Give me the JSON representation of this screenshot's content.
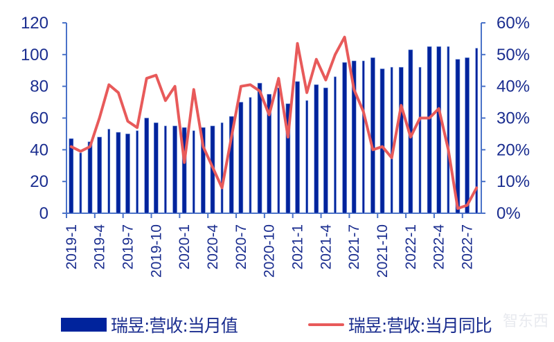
{
  "chart_data": {
    "type": "bar+line",
    "title": "",
    "xlabel": "",
    "ylabel_left": "",
    "ylabel_right": "",
    "ylim_left": [
      0,
      120
    ],
    "ylim_right": [
      0,
      60
    ],
    "yticks_left": [
      "0",
      "20",
      "40",
      "60",
      "80",
      "100",
      "120"
    ],
    "yticks_right": [
      "0%",
      "10%",
      "20%",
      "30%",
      "40%",
      "50%",
      "60%"
    ],
    "grid": false,
    "legend_position": "bottom",
    "categories": [
      "2019-1",
      "2019-2",
      "2019-3",
      "2019-4",
      "2019-5",
      "2019-6",
      "2019-7",
      "2019-8",
      "2019-9",
      "2019-10",
      "2019-11",
      "2019-12",
      "2020-1",
      "2020-2",
      "2020-3",
      "2020-4",
      "2020-5",
      "2020-6",
      "2020-7",
      "2020-8",
      "2020-9",
      "2020-10",
      "2020-11",
      "2020-12",
      "2021-1",
      "2021-2",
      "2021-3",
      "2021-4",
      "2021-5",
      "2021-6",
      "2021-7",
      "2021-8",
      "2021-9",
      "2021-10",
      "2021-11",
      "2021-12",
      "2022-1",
      "2022-2",
      "2022-3",
      "2022-4",
      "2022-5",
      "2022-6",
      "2022-7",
      "2022-8"
    ],
    "xtick_labels": [
      "2019-1",
      "2019-4",
      "2019-7",
      "2019-10",
      "2020-1",
      "2020-4",
      "2020-7",
      "2020-10",
      "2021-1",
      "2021-4",
      "2021-7",
      "2021-10",
      "2022-1",
      "2022-4",
      "2022-7"
    ],
    "series": [
      {
        "name": "瑞昱:营收:当月值",
        "type": "bar",
        "axis": "left",
        "color": "#00239c",
        "values": [
          47,
          38,
          45,
          48,
          53,
          51,
          50,
          52,
          60,
          57,
          55,
          55,
          54,
          52,
          54,
          55,
          57,
          61,
          70,
          73,
          82,
          75,
          79,
          69,
          83,
          71,
          81,
          79,
          86,
          95,
          96,
          96,
          98,
          91,
          92,
          92,
          103,
          92,
          105,
          105,
          105,
          97,
          98,
          104
        ]
      },
      {
        "name": "瑞昱:营收:当月同比",
        "type": "line",
        "axis": "right",
        "unit": "%",
        "color": "#e85a5a",
        "values": [
          21,
          19.5,
          21,
          30,
          40.5,
          38,
          29,
          27,
          42.5,
          43.5,
          35.5,
          40,
          16,
          39,
          21,
          14.5,
          8,
          24,
          40,
          40.5,
          38.5,
          31,
          42.5,
          24,
          53.5,
          38,
          48.5,
          42,
          50,
          55.5,
          39,
          32,
          20,
          21,
          17.5,
          34,
          24,
          30,
          30,
          33,
          20,
          1.5,
          2.5,
          8
        ]
      }
    ]
  },
  "legend": {
    "bar_label": "瑞昱:营收:当月值",
    "line_label": "瑞昱:营收:当月同比"
  },
  "watermark": "智东西"
}
